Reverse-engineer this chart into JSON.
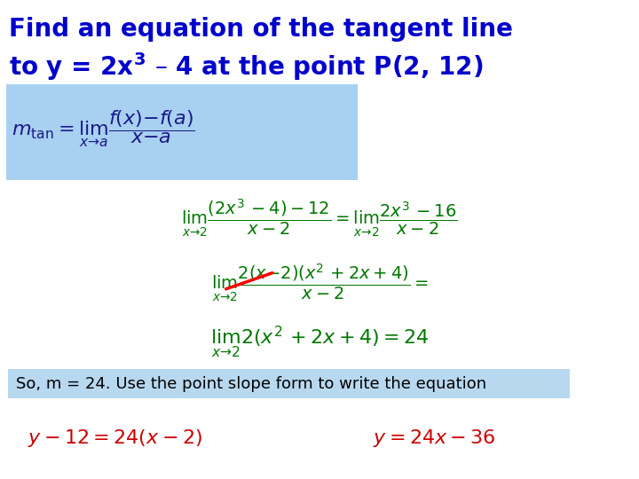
{
  "background_color": "#ffffff",
  "title_color": "#0000cc",
  "box1_bg": "#a8d0f0",
  "box2_bg": "#b8d8f0",
  "green_color": "#007700",
  "red_color": "#cc0000",
  "dark_color": "#1a1a8c",
  "figsize": [
    7.2,
    5.4
  ],
  "dpi": 100,
  "title1": "Find an equation of the tangent line",
  "title2": "to y = 2x$^{\\mathbf{3}}$ – 4 at the point P(2, 12)",
  "formula_mtan": "$m_{\\mathrm{tan}} = \\lim_{x\\to a} \\dfrac{f(x)-f(a)}{x-a}$",
  "formula1": "$\\lim_{x\\to 2}\\dfrac{(2x^3-4)-12}{x-2} = \\lim_{x\\to 2}\\dfrac{2x^3-16}{x-2}$",
  "formula2": "$\\lim_{x\\to 2}\\dfrac{2(x-2)(x^2+2x+4)}{x-2} =$",
  "formula3": "$\\lim_{x\\to 2} 2(x^2+2x+4) = 24$",
  "note": "So, m = 24. Use the point slope form to write the equation",
  "eq1": "$y-12=24(x-2)$",
  "eq2": "$y=24x-36$"
}
